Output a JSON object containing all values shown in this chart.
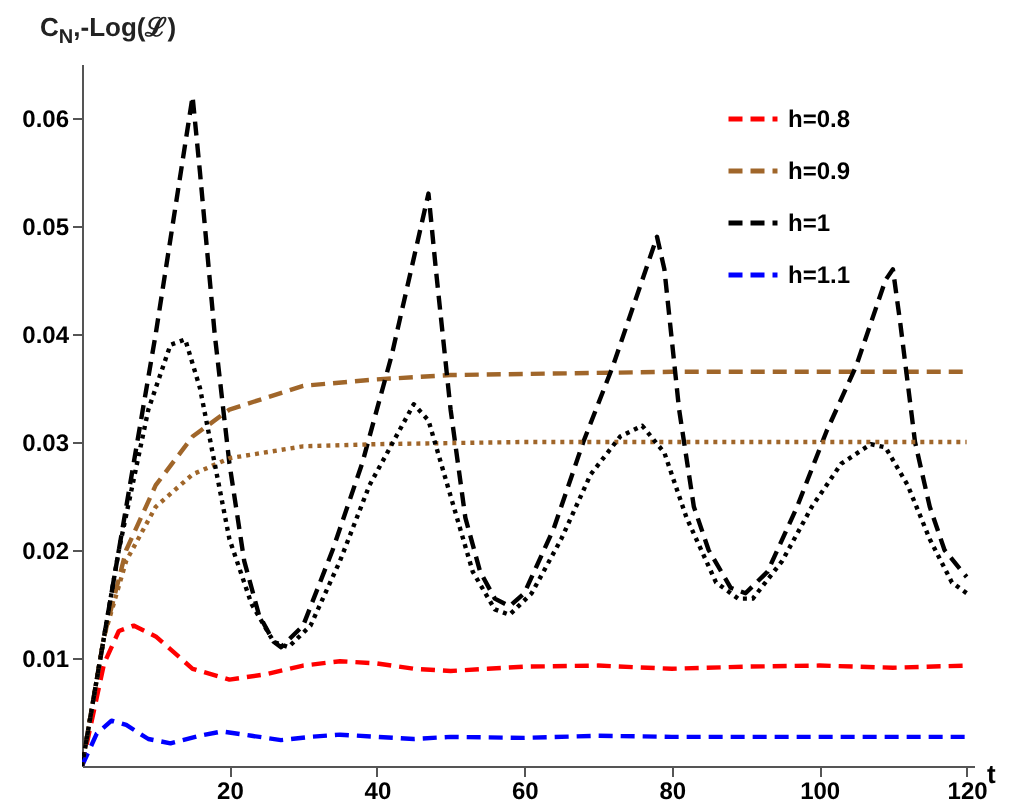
{
  "chart_data": {
    "type": "line",
    "xlabel": "t",
    "ylabel": "C$_{N}$,-Log(ℒ)",
    "xlim": [
      0,
      121
    ],
    "ylim": [
      0,
      0.065
    ],
    "xticks": [
      20,
      40,
      60,
      80,
      100,
      120
    ],
    "yticks": [
      0.01,
      0.02,
      0.03,
      0.04,
      0.05,
      0.06
    ],
    "legend": "top right",
    "grid": false,
    "series": [
      {
        "name": "h=0.8",
        "color": "#ff0000",
        "line_style": "dashed",
        "x": [
          0,
          3,
          5,
          7,
          10,
          15,
          20,
          25,
          30,
          35,
          40,
          45,
          50,
          55,
          60,
          70,
          80,
          90,
          100,
          110,
          120
        ],
        "values": [
          0,
          0.0095,
          0.0125,
          0.013,
          0.012,
          0.009,
          0.008,
          0.0085,
          0.0093,
          0.0097,
          0.0095,
          0.009,
          0.0088,
          0.009,
          0.0092,
          0.0093,
          0.009,
          0.0092,
          0.0093,
          0.0091,
          0.0093
        ]
      },
      {
        "name": "h=0.9",
        "color": "#a0662a",
        "line_style": "dashed",
        "x": [
          0,
          3,
          6,
          10,
          15,
          20,
          30,
          40,
          50,
          60,
          80,
          100,
          120
        ],
        "values": [
          0,
          0.012,
          0.02,
          0.026,
          0.0305,
          0.033,
          0.0352,
          0.0358,
          0.0362,
          0.0363,
          0.0365,
          0.0365,
          0.0365
        ]
      },
      {
        "name": "h=1",
        "color": "#000000",
        "line_style": "dashed",
        "x": [
          0,
          5,
          10,
          15,
          16,
          18,
          20,
          22,
          24,
          26,
          27,
          30,
          34,
          38,
          42,
          46,
          47,
          48,
          50,
          52,
          54,
          56,
          58,
          60,
          64,
          68,
          72,
          76,
          78,
          79,
          81,
          83,
          85,
          88,
          90,
          93,
          97,
          101,
          105,
          109,
          110,
          111,
          113,
          115,
          117,
          120
        ],
        "values": [
          0,
          0.02,
          0.04,
          0.062,
          0.055,
          0.04,
          0.028,
          0.019,
          0.014,
          0.0115,
          0.011,
          0.013,
          0.02,
          0.028,
          0.038,
          0.05,
          0.053,
          0.046,
          0.033,
          0.023,
          0.018,
          0.0155,
          0.0148,
          0.016,
          0.022,
          0.03,
          0.037,
          0.045,
          0.049,
          0.046,
          0.033,
          0.024,
          0.02,
          0.0165,
          0.016,
          0.018,
          0.024,
          0.031,
          0.037,
          0.045,
          0.046,
          0.041,
          0.03,
          0.024,
          0.02,
          0.0175
        ]
      },
      {
        "name": "h=1.1",
        "color": "#0000ff",
        "line_style": "dashed",
        "x": [
          0,
          2,
          4,
          6,
          9,
          12,
          16,
          19,
          23,
          27,
          31,
          35,
          40,
          45,
          50,
          60,
          70,
          80,
          100,
          120
        ],
        "values": [
          0,
          0.003,
          0.0042,
          0.0038,
          0.0025,
          0.0021,
          0.0028,
          0.0032,
          0.0028,
          0.0024,
          0.0027,
          0.0029,
          0.0027,
          0.0025,
          0.0027,
          0.0026,
          0.0028,
          0.0027,
          0.0027,
          0.0027
        ]
      },
      {
        "color": "#a0662a",
        "line_style": "dotted",
        "x": [
          0,
          3,
          6,
          10,
          15,
          20,
          30,
          40,
          60,
          120
        ],
        "values": [
          0,
          0.012,
          0.019,
          0.024,
          0.027,
          0.0285,
          0.0296,
          0.0298,
          0.03,
          0.03
        ]
      },
      {
        "color": "#000000",
        "line_style": "dotted",
        "x": [
          0,
          5,
          9,
          12,
          14,
          16,
          18,
          20,
          23,
          26,
          28,
          31,
          35,
          39,
          43,
          45,
          47,
          50,
          53,
          56,
          58,
          61,
          65,
          69,
          73,
          76,
          79,
          82,
          86,
          89,
          91,
          95,
          99,
          103,
          107,
          109,
          112,
          115,
          118,
          120
        ],
        "values": [
          0,
          0.02,
          0.033,
          0.039,
          0.0395,
          0.035,
          0.028,
          0.021,
          0.015,
          0.0115,
          0.011,
          0.013,
          0.019,
          0.026,
          0.031,
          0.0335,
          0.032,
          0.025,
          0.018,
          0.0145,
          0.014,
          0.016,
          0.021,
          0.027,
          0.0305,
          0.0315,
          0.029,
          0.023,
          0.017,
          0.0155,
          0.0155,
          0.019,
          0.024,
          0.028,
          0.0298,
          0.0295,
          0.026,
          0.021,
          0.017,
          0.016
        ]
      }
    ]
  }
}
